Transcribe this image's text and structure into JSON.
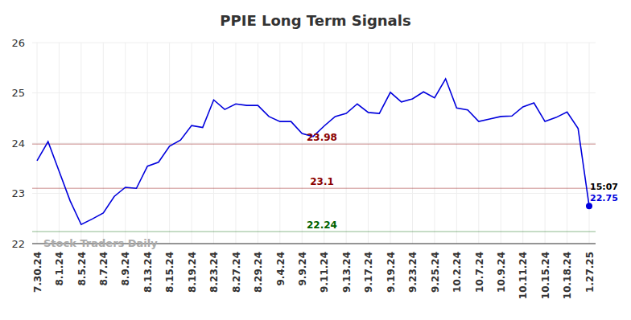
{
  "chart_data": {
    "type": "line",
    "title": "PPIE Long Term Signals",
    "categories": [
      "7.30.24",
      null,
      "8.1.24",
      null,
      "8.5.24",
      null,
      "8.7.24",
      null,
      "8.9.24",
      null,
      "8.13.24",
      null,
      "8.15.24",
      null,
      "8.19.24",
      null,
      "8.23.24",
      null,
      "8.27.24",
      null,
      "8.29.24",
      null,
      "9.4.24",
      null,
      "9.9.24",
      null,
      "9.11.24",
      null,
      "9.13.24",
      null,
      "9.17.24",
      null,
      "9.19.24",
      null,
      "9.23.24",
      null,
      "9.25.24",
      null,
      "10.2.24",
      null,
      "10.7.24",
      null,
      "10.9.24",
      null,
      "10.11.24",
      null,
      "10.15.24",
      null,
      "10.18.24",
      null,
      "1.27.25"
    ],
    "values": [
      23.65,
      24.03,
      23.44,
      22.85,
      22.38,
      22.49,
      22.61,
      22.94,
      23.12,
      23.1,
      23.54,
      23.62,
      23.94,
      24.06,
      24.35,
      24.31,
      24.86,
      24.67,
      24.78,
      24.75,
      24.75,
      24.53,
      24.43,
      24.43,
      24.19,
      24.13,
      24.34,
      24.53,
      24.59,
      24.78,
      24.61,
      24.59,
      25.01,
      24.82,
      24.88,
      25.02,
      24.9,
      25.28,
      24.7,
      24.66,
      24.43,
      24.48,
      24.53,
      24.54,
      24.72,
      24.8,
      24.43,
      24.51,
      24.62,
      24.29,
      22.75
    ],
    "color": "#0000dd",
    "ylim": [
      22,
      26
    ],
    "yticks": [
      22,
      23,
      24,
      25,
      26
    ],
    "grid": true,
    "annotations": [
      {
        "text": "23.98",
        "value": 23.98,
        "color": "#8b0000"
      },
      {
        "text": "23.1",
        "value": 23.1,
        "color": "#8b0000"
      },
      {
        "text": "22.24",
        "value": 22.24,
        "color": "#006400"
      }
    ],
    "last_time": "15:07",
    "last_value_label": "22.75",
    "watermark": "Stock Traders Daily"
  }
}
